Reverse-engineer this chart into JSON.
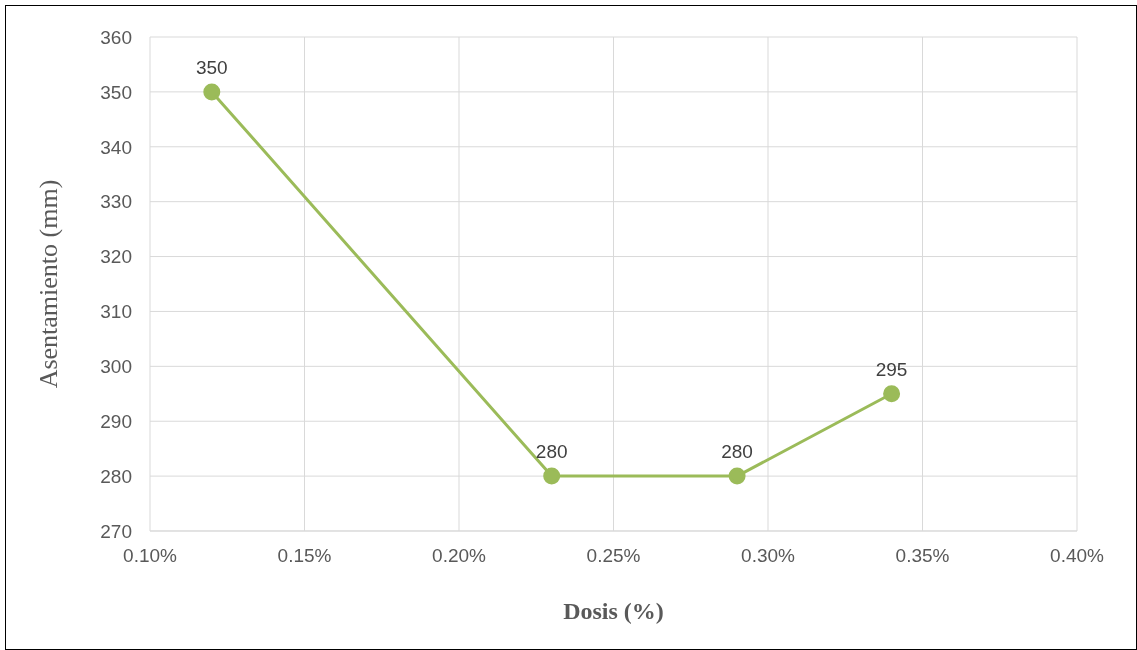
{
  "chart_data": {
    "type": "line",
    "xlabel": "Dosis (%)",
    "ylabel": "Asentamiento (mm)",
    "x": [
      0.12,
      0.23,
      0.29,
      0.34
    ],
    "series": [
      {
        "color": "#9bbb59",
        "values": [
          350,
          280,
          280,
          295
        ]
      }
    ],
    "xlim": [
      0.1,
      0.4
    ],
    "xticks": [
      {
        "value": 0.1,
        "label": "0.10%"
      },
      {
        "value": 0.15,
        "label": "0.15%"
      },
      {
        "value": 0.2,
        "label": "0.20%"
      },
      {
        "value": 0.25,
        "label": "0.25%"
      },
      {
        "value": 0.3,
        "label": "0.30%"
      },
      {
        "value": 0.35,
        "label": "0.35%"
      },
      {
        "value": 0.4,
        "label": "0.40%"
      }
    ],
    "ylim": [
      270,
      360
    ],
    "yticks": [
      270,
      280,
      290,
      300,
      310,
      320,
      330,
      340,
      350,
      360
    ],
    "grid": true,
    "legend": false,
    "marker": "circle",
    "line_style": "solid",
    "data_labels": true
  }
}
